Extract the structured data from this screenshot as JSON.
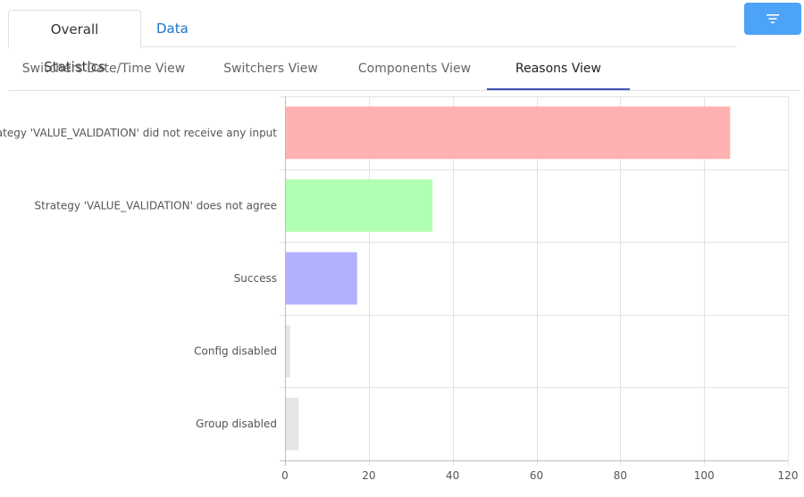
{
  "top_tabs": [
    {
      "label": "Overall Statistics",
      "active": true
    },
    {
      "label": "Data",
      "active": false
    }
  ],
  "filter_button": {
    "icon": "filter-icon"
  },
  "sub_tabs": [
    {
      "label": "Switchers Date/Time View",
      "active": false
    },
    {
      "label": "Switchers View",
      "active": false
    },
    {
      "label": "Components View",
      "active": false
    },
    {
      "label": "Reasons View",
      "active": true
    }
  ],
  "chart_data": {
    "type": "bar",
    "orientation": "horizontal",
    "categories": [
      "Strategy 'VALUE_VALIDATION' did not receive any input",
      "Strategy 'VALUE_VALIDATION' does not agree",
      "Success",
      "Config disabled",
      "Group disabled"
    ],
    "values": [
      106,
      35,
      17,
      1,
      3
    ],
    "colors": [
      "#ffb1b1",
      "#b1ffb1",
      "#b1b1ff",
      "#e5e5e5",
      "#e5e5e5"
    ],
    "xlim": [
      0,
      120
    ],
    "xticks": [
      0,
      20,
      40,
      60,
      80,
      100,
      120
    ],
    "grid": true,
    "title": "",
    "xlabel": "",
    "ylabel": ""
  }
}
